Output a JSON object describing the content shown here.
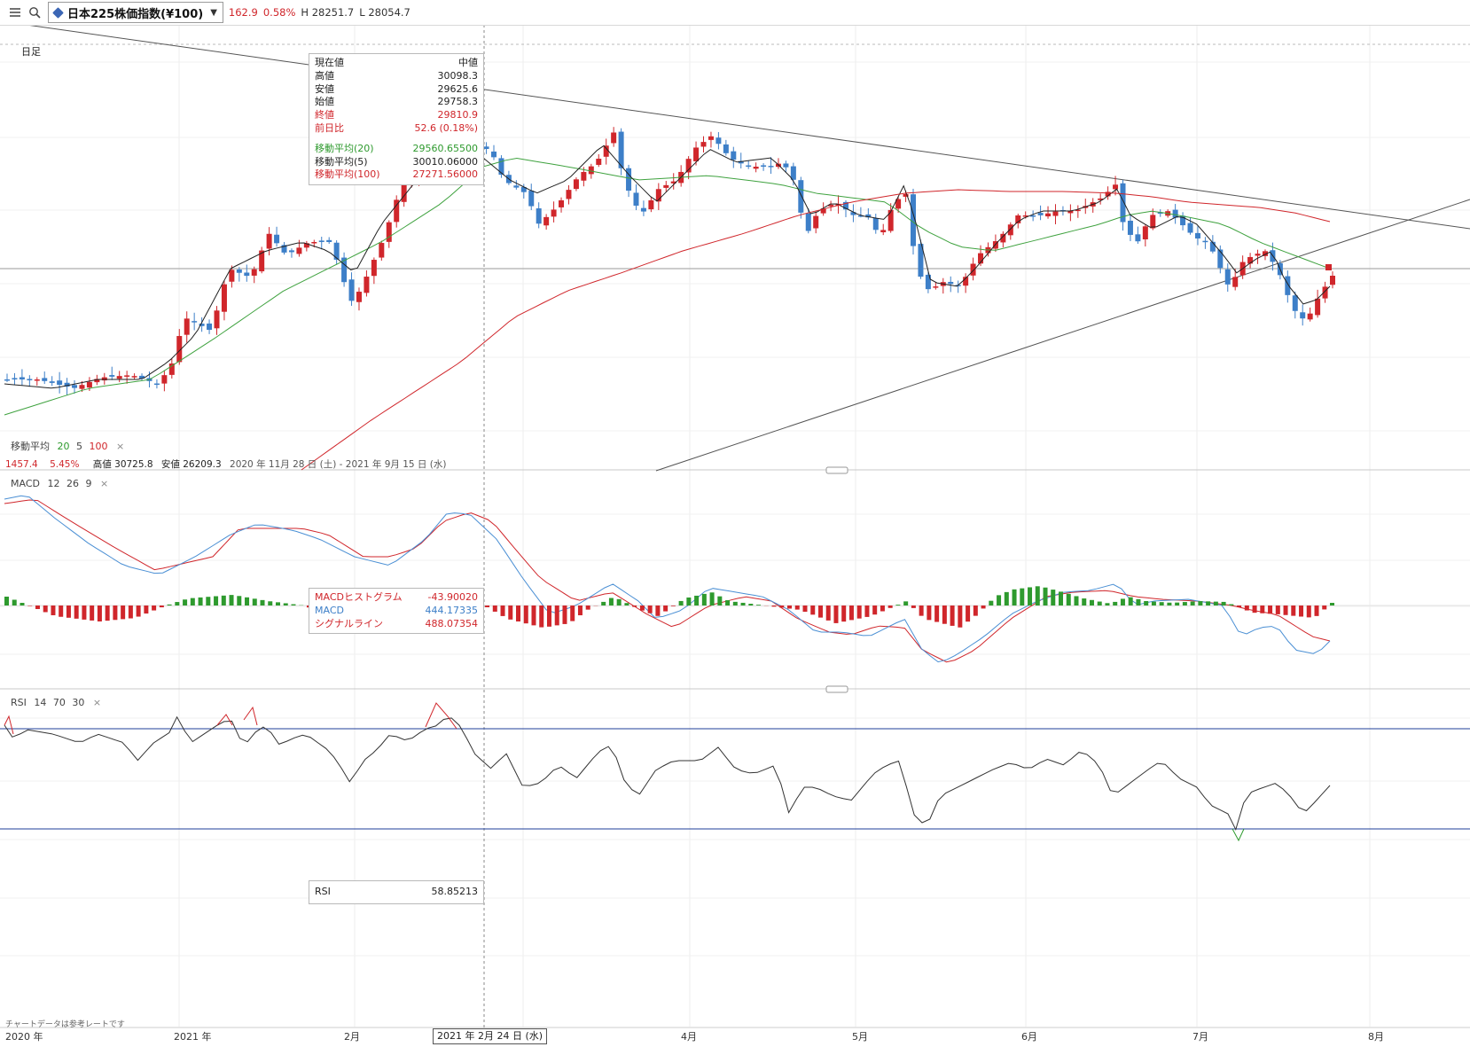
{
  "toolbar": {
    "menu_icon": "hamburger-menu-icon",
    "search_icon": "search-icon",
    "symbol": "日本225株価指数(¥100)",
    "change": "162.9",
    "change_pct": "0.58%",
    "high": "H 28251.7",
    "low": "L 28054.7"
  },
  "chart": {
    "period_label": "日足",
    "ma_legend": {
      "label": "移動平均",
      "p1": "20",
      "p2": "5",
      "p3": "100",
      "close": "×"
    },
    "range_info": {
      "diff": "1457.4",
      "diff_pct": "5.45%",
      "high": "高値 30725.8",
      "low": "安値 26209.3",
      "period": "2020 年 11月 28 日 (土) - 2021 年 9月 15 日 (水)"
    },
    "macd_legend": {
      "label": "MACD",
      "p1": "12",
      "p2": "26",
      "p3": "9",
      "close": "×"
    },
    "rsi_legend": {
      "label": "RSI",
      "p1": "14",
      "p2": "70",
      "p3": "30",
      "close": "×"
    },
    "footer_note": "チャートデータは参考レートです",
    "time_axis": [
      "2020 年",
      "2021 年",
      "2月",
      "4月",
      "5月",
      "6月",
      "7月",
      "8月"
    ],
    "cursor_date": "2021 年 2月 24 日 (水)"
  },
  "price_tooltip": {
    "header_left": "現在値",
    "header_right": "中値",
    "rows": [
      {
        "label": "高値",
        "value": "30098.3"
      },
      {
        "label": "安値",
        "value": "29625.6"
      },
      {
        "label": "始値",
        "value": "29758.3"
      },
      {
        "label": "終値",
        "value": "29810.9"
      },
      {
        "label": "前日比",
        "value": "52.6 (0.18%)"
      }
    ],
    "ma_rows": [
      {
        "label": "移動平均(20)",
        "value": "29560.65500"
      },
      {
        "label": "移動平均(5)",
        "value": "30010.06000"
      },
      {
        "label": "移動平均(100)",
        "value": "27271.56000"
      }
    ]
  },
  "macd_tooltip": {
    "rows": [
      {
        "label": "MACDヒストグラム",
        "value": "-43.90020"
      },
      {
        "label": "MACD",
        "value": "444.17335"
      },
      {
        "label": "シグナルライン",
        "value": "488.07354"
      }
    ]
  },
  "rsi_tooltip": {
    "label": "RSI",
    "value": "58.85213"
  },
  "colors": {
    "up": "#d0262b",
    "down": "#3d7fc8",
    "ma20": "#3fa23f",
    "ma5": "#222222",
    "ma100": "#d0262b",
    "macd": "#4a8fd4",
    "signal": "#d0262b",
    "rsi_line": "#333333",
    "rsi_band": "#1f3f9a"
  }
}
